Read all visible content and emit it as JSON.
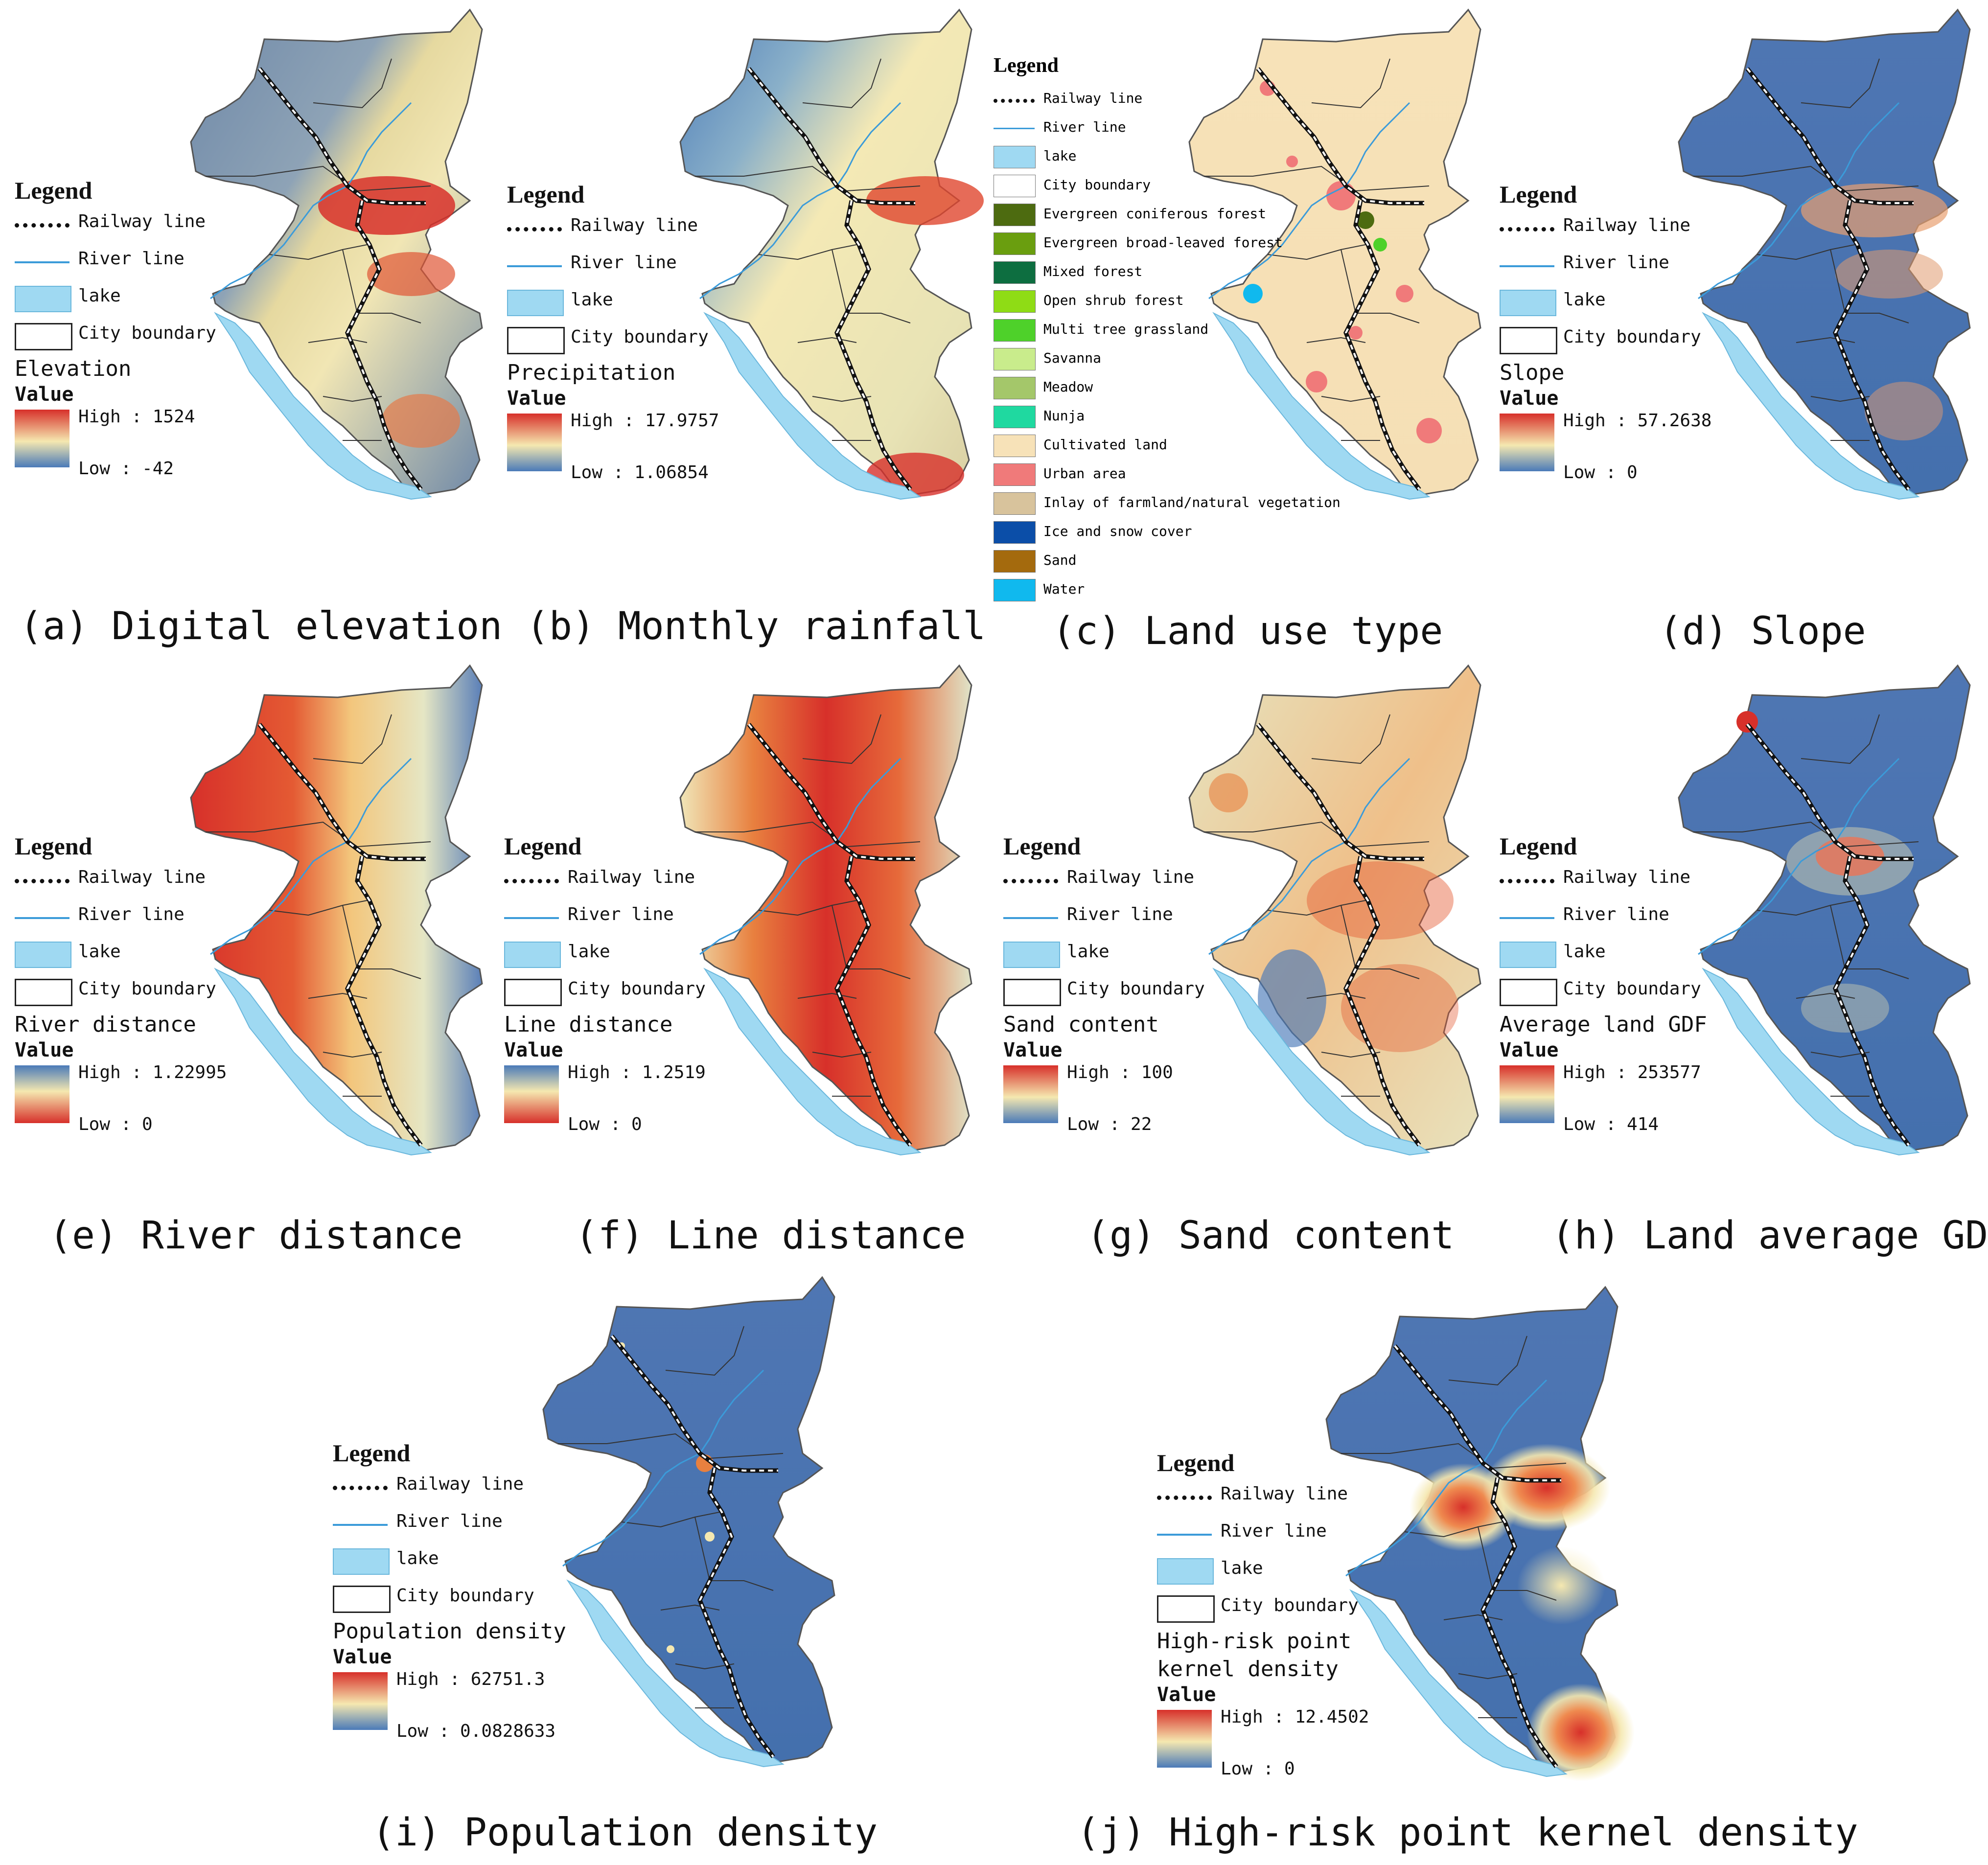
{
  "legend_common": {
    "title": "Legend",
    "railway": "Railway line",
    "river": "River line",
    "lake": "lake",
    "city": "City boundary",
    "value": "Value"
  },
  "panels": {
    "a": {
      "caption": "(a) Digital elevation",
      "layer": "Elevation",
      "high": "High : 1524",
      "low": "Low : -42",
      "ramp": "high-red"
    },
    "b": {
      "caption": "(b) Monthly rainfall",
      "layer": "Precipitation",
      "high": "High : 17.9757",
      "low": "Low : 1.06854",
      "ramp": "high-red"
    },
    "c": {
      "caption": "(c) Land use type"
    },
    "d": {
      "caption": "(d) Slope",
      "layer": "Slope",
      "high": "High : 57.2638",
      "low": "Low : 0",
      "ramp": "high-red"
    },
    "e": {
      "caption": "(e) River distance",
      "layer": "River distance",
      "high": "High : 1.22995",
      "low": "Low : 0",
      "ramp": "high-blue"
    },
    "f": {
      "caption": "(f) Line distance",
      "layer": "Line distance",
      "high": "High : 1.2519",
      "low": "Low : 0",
      "ramp": "high-blue"
    },
    "g": {
      "caption": "(g) Sand content",
      "layer": "Sand content",
      "high": "High : 100",
      "low": "Low : 22",
      "ramp": "high-red"
    },
    "h": {
      "caption": "(h) Land average GDP",
      "layer": "Average land GDF",
      "high": "High : 253577",
      "low": "Low : 414",
      "ramp": "high-red"
    },
    "i": {
      "caption": "(i) Population density",
      "layer": "Population density",
      "high": "High : 62751.3",
      "low": "Low : 0.0828633",
      "ramp": "high-red"
    },
    "j": {
      "caption": "(j) High-risk point kernel density",
      "layer_line1": "High-risk point",
      "layer_line2": "kernel density",
      "high": "High : 12.4502",
      "low": "Low : 0",
      "ramp": "high-red"
    }
  },
  "land_use_legend": {
    "title": "Legend",
    "items": [
      {
        "label": "Railway line",
        "color": "#111111",
        "kind": "rail"
      },
      {
        "label": "River line",
        "color": "#3b9bd9",
        "kind": "river"
      },
      {
        "label": "lake",
        "color": "#9fd9f2",
        "kind": "box"
      },
      {
        "label": "City boundary",
        "color": "#ffffff",
        "kind": "box"
      },
      {
        "label": "Evergreen coniferous forest",
        "color": "#4d6b10",
        "kind": "box"
      },
      {
        "label": "Evergreen broad-leaved forest",
        "color": "#6a9e0f",
        "kind": "box"
      },
      {
        "label": "Mixed forest",
        "color": "#0d6e40",
        "kind": "box"
      },
      {
        "label": "Open shrub forest",
        "color": "#8fdc15",
        "kind": "box"
      },
      {
        "label": "Multi tree grassland",
        "color": "#4ed12a",
        "kind": "box"
      },
      {
        "label": "Savanna",
        "color": "#c9ec8c",
        "kind": "box"
      },
      {
        "label": "Meadow",
        "color": "#a4c76a",
        "kind": "box"
      },
      {
        "label": "Nunja",
        "color": "#1fd9a0",
        "kind": "box"
      },
      {
        "label": "Cultivated land",
        "color": "#f7e2b8",
        "kind": "box"
      },
      {
        "label": "Urban area",
        "color": "#f07a7a",
        "kind": "box"
      },
      {
        "label": "Inlay of farmland/natural vegetation",
        "color": "#d8c39c",
        "kind": "box"
      },
      {
        "label": "Ice and snow cover",
        "color": "#0b4ea8",
        "kind": "box"
      },
      {
        "label": "Sand",
        "color": "#a46a0d",
        "kind": "box"
      },
      {
        "label": "Water",
        "color": "#10b9ee",
        "kind": "box"
      }
    ]
  }
}
